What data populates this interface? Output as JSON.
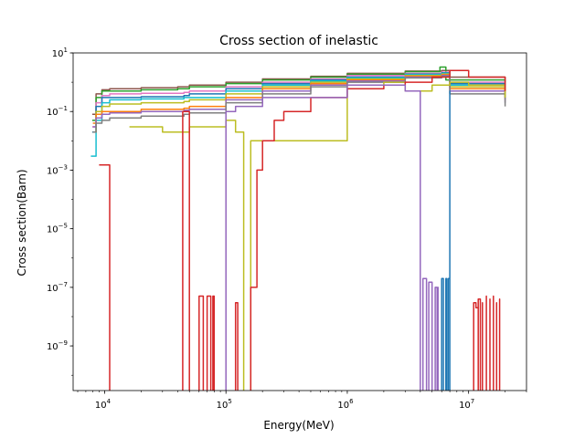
{
  "chart_data": {
    "type": "line",
    "title": "Cross section of inelastic",
    "xlabel": "Energy(MeV)",
    "ylabel": "Cross section(Barn)",
    "xscale": "log",
    "yscale": "log",
    "xlim": [
      5500,
      30000000
    ],
    "ylim": [
      3e-11,
      10
    ],
    "x_ticks": [
      {
        "value": 10000,
        "base": "10",
        "exp": "4"
      },
      {
        "value": 100000,
        "base": "10",
        "exp": "5"
      },
      {
        "value": 1000000,
        "base": "10",
        "exp": "6"
      },
      {
        "value": 10000000,
        "base": "10",
        "exp": "7"
      }
    ],
    "y_ticks": [
      {
        "value": 1e-09,
        "base": "10",
        "exp": "−9"
      },
      {
        "value": 1e-07,
        "base": "10",
        "exp": "−7"
      },
      {
        "value": 1e-05,
        "base": "10",
        "exp": "−5"
      },
      {
        "value": 0.001,
        "base": "10",
        "exp": "−3"
      },
      {
        "value": 0.1,
        "base": "10",
        "exp": "−1"
      },
      {
        "value": 10,
        "base": "10",
        "exp": "1"
      }
    ],
    "grid": false,
    "legend": "none",
    "colors": [
      "#1f77b4",
      "#ff7f0e",
      "#2ca02c",
      "#d62728",
      "#9467bd",
      "#8c564b",
      "#e377c2",
      "#7f7f7f",
      "#bcbd22",
      "#17becf"
    ],
    "series": [
      {
        "color": "#8c564b",
        "x": [
          7900,
          8500,
          9500,
          11000,
          20000,
          40000,
          50000,
          100000,
          200000,
          500000,
          1000000,
          3000000,
          6000000,
          7000000,
          20000000
        ],
        "y": [
          0.08,
          0.4,
          0.55,
          0.6,
          0.65,
          0.7,
          0.8,
          1.0,
          1.3,
          1.6,
          2.0,
          2.4,
          2.5,
          1.5,
          0.6
        ]
      },
      {
        "color": "#2ca02c",
        "x": [
          7900,
          8500,
          9500,
          11000,
          20000,
          40000,
          50000,
          100000,
          200000,
          500000,
          1000000,
          3000000,
          5800000,
          6500000,
          20000000
        ],
        "y": [
          0.05,
          0.3,
          0.5,
          0.5,
          0.55,
          0.6,
          0.7,
          0.9,
          1.2,
          1.5,
          1.9,
          2.3,
          3.3,
          1.2,
          0.5
        ]
      },
      {
        "color": "#e377c2",
        "x": [
          7900,
          8500,
          9500,
          11000,
          20000,
          45000,
          50000,
          100000,
          200000,
          500000,
          1000000,
          3000000,
          6000000,
          7000000,
          20000000
        ],
        "y": [
          0.03,
          0.2,
          0.35,
          0.4,
          0.42,
          0.45,
          0.5,
          0.7,
          1.0,
          1.3,
          1.7,
          2.0,
          2.2,
          1.0,
          0.4
        ]
      },
      {
        "color": "#1f77b4",
        "x": [
          7900,
          8500,
          9500,
          11000,
          20000,
          45000,
          50000,
          100000,
          200000,
          500000,
          1000000,
          3000000,
          6000000,
          7000000,
          20000000
        ],
        "y": [
          0.02,
          0.15,
          0.3,
          0.3,
          0.32,
          0.35,
          0.4,
          0.6,
          0.9,
          1.2,
          1.5,
          1.9,
          2.1,
          0.9,
          0.35
        ]
      },
      {
        "color": "#17becf",
        "x": [
          7700,
          8500,
          9500,
          11000,
          20000,
          45000,
          50000,
          100000,
          200000,
          500000,
          1000000,
          3000000,
          6000000,
          7000000,
          20000000
        ],
        "y": [
          0.003,
          0.05,
          0.2,
          0.25,
          0.27,
          0.3,
          0.3,
          0.5,
          0.8,
          1.1,
          1.4,
          1.8,
          2.0,
          0.8,
          0.3
        ]
      },
      {
        "color": "#bcbd22",
        "x": [
          8000,
          8500,
          9500,
          11000,
          20000,
          45000,
          50000,
          100000,
          200000,
          500000,
          1000000,
          3000000,
          6000000,
          7000000,
          20000000
        ],
        "y": [
          0.02,
          0.1,
          0.15,
          0.18,
          0.2,
          0.22,
          0.25,
          0.4,
          0.7,
          1.0,
          1.3,
          1.7,
          1.9,
          0.7,
          0.3
        ]
      },
      {
        "color": "#ff7f0e",
        "x": [
          8000,
          8500,
          9500,
          11000,
          20000,
          45000,
          50000,
          100000,
          200000,
          500000,
          1000000,
          3000000,
          6000000,
          7000000,
          20000000
        ],
        "y": [
          0.04,
          0.08,
          0.1,
          0.1,
          0.12,
          0.13,
          0.15,
          0.3,
          0.6,
          0.9,
          1.2,
          1.6,
          1.8,
          0.6,
          0.25
        ]
      },
      {
        "color": "#9467bd",
        "x": [
          8000,
          8500,
          9500,
          11000,
          20000,
          45000,
          50000,
          100000,
          200000,
          500000,
          1000000,
          3000000,
          6000000,
          7000000,
          20000000
        ],
        "y": [
          0.03,
          0.06,
          0.08,
          0.09,
          0.1,
          0.11,
          0.12,
          0.25,
          0.5,
          0.8,
          1.1,
          1.5,
          1.7,
          0.5,
          0.2
        ]
      },
      {
        "color": "#7f7f7f",
        "x": [
          8000,
          8500,
          9500,
          11000,
          20000,
          45000,
          50000,
          100000,
          200000,
          500000,
          1000000,
          3000000,
          6000000,
          7000000,
          20000000
        ],
        "y": [
          0.02,
          0.04,
          0.05,
          0.06,
          0.07,
          0.08,
          0.09,
          0.2,
          0.4,
          0.7,
          1.0,
          1.4,
          1.6,
          0.4,
          0.15
        ]
      },
      {
        "color": "#bcbd22",
        "x": [
          16000,
          30000,
          50000,
          100000,
          120000,
          140000,
          150000,
          160000,
          1000000,
          2000000,
          3000000,
          5000000,
          7000000,
          10000000,
          20000000
        ],
        "y": [
          0.03,
          0.02,
          0.03,
          0.05,
          0.02,
          2e-11,
          2e-11,
          0.01,
          0.8,
          1.0,
          0.5,
          0.8,
          1.0,
          0.8,
          0.3
        ]
      },
      {
        "color": "#d62728",
        "x": [
          9000,
          9500,
          10000,
          10500,
          11000,
          11000
        ],
        "y": [
          0.0015,
          0.0015,
          0.0015,
          0.0015,
          0.0015,
          2e-11
        ]
      },
      {
        "color": "#d62728",
        "x": [
          44000,
          44000,
          47000,
          48000,
          50000,
          50000
        ],
        "y": [
          2e-11,
          0.1,
          0.1,
          0.1,
          0.1,
          2e-11
        ]
      },
      {
        "color": "#d62728",
        "x": [
          60000,
          60000,
          65000,
          65000,
          70000,
          70000,
          75000,
          75000,
          78000,
          78000,
          80000,
          80000
        ],
        "y": [
          2e-11,
          5e-08,
          5e-08,
          2e-11,
          2e-11,
          5e-08,
          5e-08,
          2e-11,
          2e-11,
          5e-08,
          5e-08,
          2e-11
        ]
      },
      {
        "color": "#d62728",
        "x": [
          120000,
          120000,
          125000,
          125000
        ],
        "y": [
          2e-11,
          3e-08,
          3e-08,
          2e-11
        ]
      },
      {
        "color": "#d62728",
        "x": [
          160000,
          160000,
          175000,
          180000,
          200000,
          250000,
          300000,
          500000,
          1000000,
          2000000,
          3000000,
          5000000,
          7000000,
          10000000,
          20000000
        ],
        "y": [
          2e-11,
          1e-07,
          1e-07,
          0.001,
          0.01,
          0.05,
          0.1,
          0.3,
          0.6,
          0.8,
          1.0,
          1.5,
          2.5,
          1.5,
          0.5
        ]
      },
      {
        "color": "#d62728",
        "x": [
          11000000,
          11000000,
          11500000,
          12000000,
          12000000,
          12500000,
          13000000,
          13000000,
          14000000,
          14000000,
          15000000,
          15000000,
          16000000,
          16000000,
          17000000,
          17000000,
          18000000,
          18000000,
          19000000
        ],
        "y": [
          2e-11,
          3e-08,
          2e-08,
          2e-11,
          4e-08,
          2e-11,
          3e-08,
          2e-11,
          5e-08,
          2e-11,
          4e-08,
          2e-11,
          5e-08,
          2e-11,
          3e-08,
          2e-11,
          4e-08,
          2e-11,
          2e-11
        ]
      },
      {
        "color": "#9467bd",
        "x": [
          100000,
          100000,
          110000,
          120000,
          200000,
          1000000,
          3000000,
          4000000,
          4000000,
          4200000,
          4500000,
          4700000,
          5000000,
          5300000,
          5500000,
          5600000,
          5600000
        ],
        "y": [
          2e-11,
          0.1,
          0.1,
          0.15,
          0.3,
          0.8,
          0.5,
          0.2,
          2e-11,
          2e-07,
          2e-11,
          1.5e-07,
          2e-11,
          1e-07,
          2e-11,
          1e-07,
          2e-11
        ]
      },
      {
        "color": "#1f77b4",
        "x": [
          6000000,
          6000000,
          6200000,
          6500000,
          6600000,
          6800000,
          7000000,
          7000000
        ],
        "y": [
          2e-11,
          2e-07,
          2e-11,
          2e-07,
          2e-11,
          2e-07,
          0.5,
          2e-11
        ]
      }
    ]
  }
}
